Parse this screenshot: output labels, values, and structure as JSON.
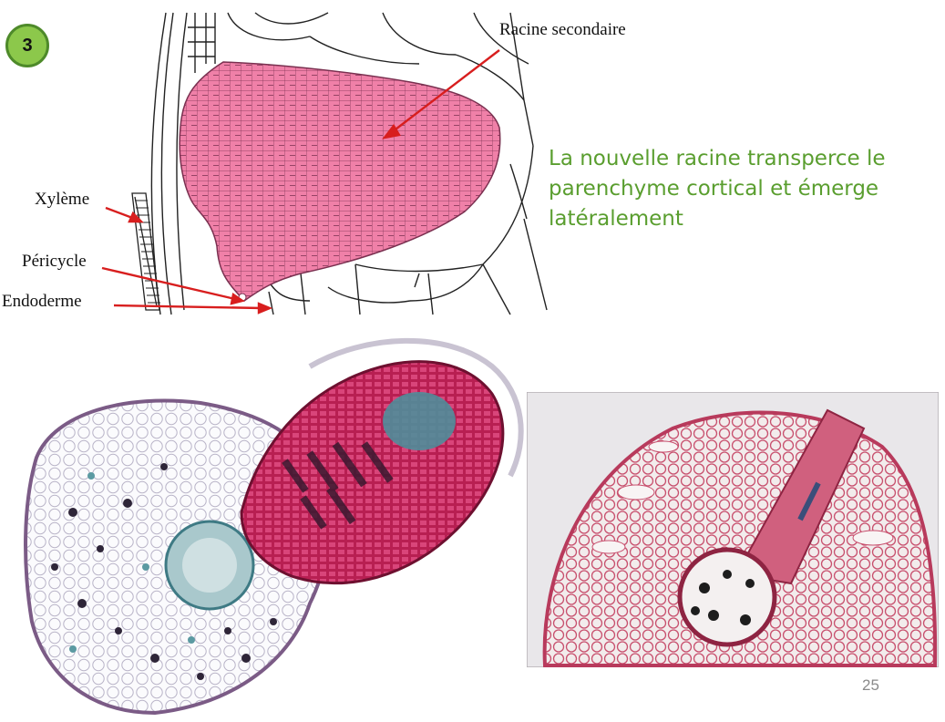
{
  "slide": {
    "badge": "3",
    "page_number": "25",
    "caption": "La nouvelle racine transperce le parenchyme cortical et émerge latéralement"
  },
  "diagram": {
    "labels": {
      "racine": "Racine secondaire",
      "xyleme": "Xylème",
      "pericycle": "Péricycle",
      "endoderme": "Endoderme"
    },
    "colors": {
      "root_fill": "#f080a8",
      "root_stroke": "#7a3050",
      "arrow": "#d81e1e",
      "lines": "#222222"
    }
  },
  "micrographs": {
    "left": {
      "tissue_colors": [
        "#c3245a",
        "#4e8c98",
        "#3a2a44"
      ]
    },
    "right": {
      "tissue_colors": [
        "#c8506e",
        "#2a2a2a",
        "#f2ecec"
      ]
    }
  }
}
